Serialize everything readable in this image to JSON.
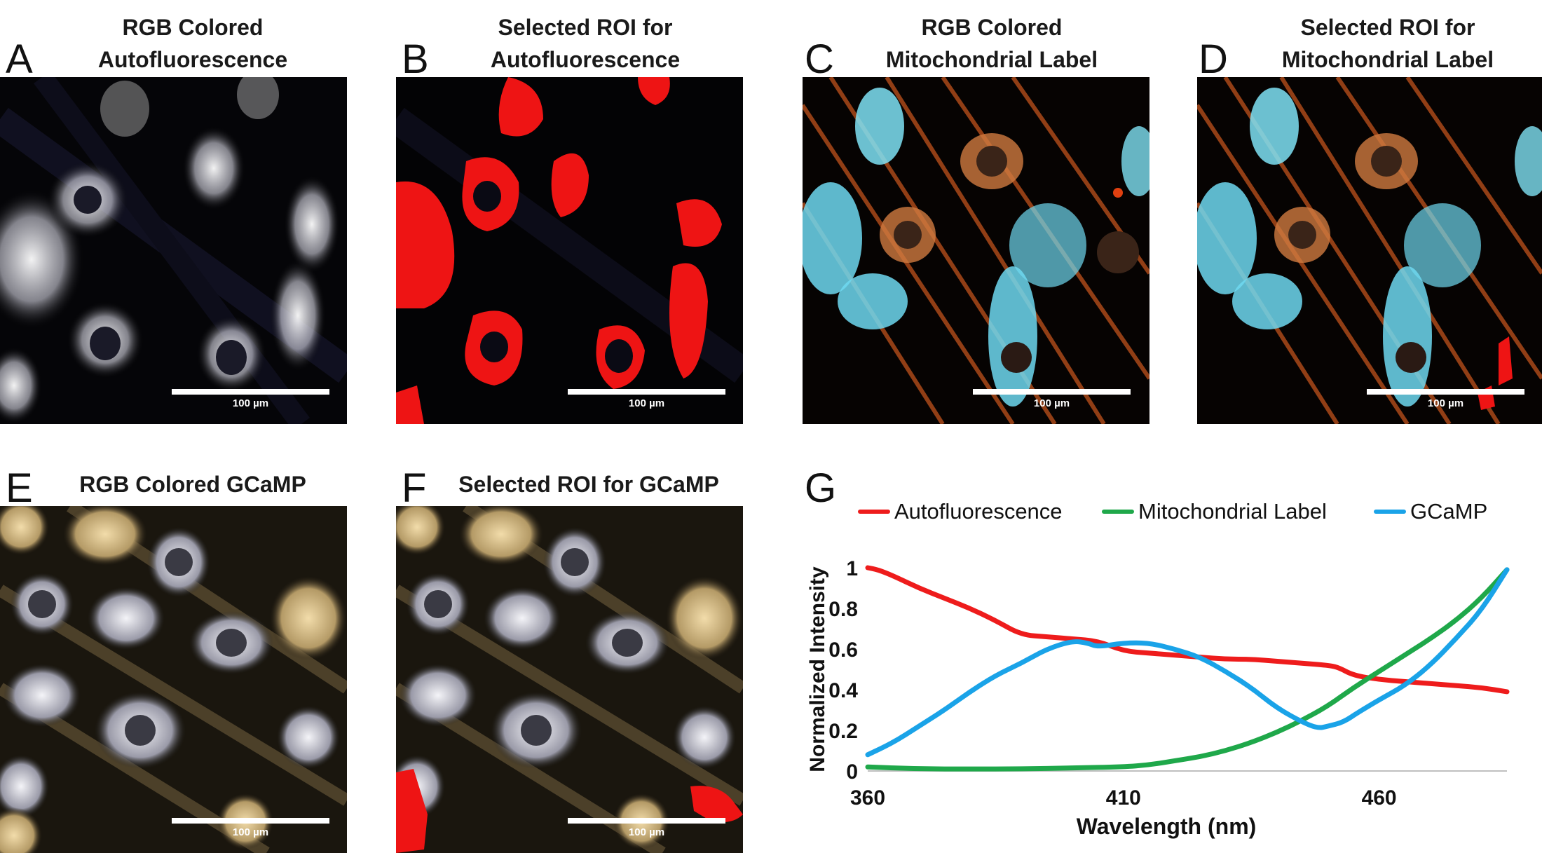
{
  "panels": [
    {
      "letter": "A",
      "title": [
        "RGB Colored",
        "Autofluorescence"
      ],
      "scale": "100 µm"
    },
    {
      "letter": "B",
      "title": [
        "Selected ROI for",
        "Autofluorescence"
      ],
      "scale": "100 µm"
    },
    {
      "letter": "C",
      "title": [
        "RGB Colored",
        "Mitochondrial Label"
      ],
      "scale": "100 µm"
    },
    {
      "letter": "D",
      "title": [
        "Selected ROI for",
        "Mitochondrial Label"
      ],
      "scale": "100 µm"
    },
    {
      "letter": "E",
      "title": [
        "RGB Colored GCaMP"
      ],
      "scale": "100 µm"
    },
    {
      "letter": "F",
      "title": [
        "Selected ROI for GCaMP"
      ],
      "scale": "100 µm"
    }
  ],
  "chart_letter": "G",
  "chart_data": {
    "type": "line",
    "xlabel": "Wavelength (nm)",
    "ylabel": "Normalized Intensity",
    "xlim": [
      360,
      485
    ],
    "ylim": [
      0,
      1
    ],
    "xticks": [
      360,
      410,
      460
    ],
    "yticks": [
      0,
      0.2,
      0.4,
      0.6,
      0.8,
      1
    ],
    "legend_position": "top",
    "series": [
      {
        "name": "Autofluorescence",
        "color": "#ee1c1c",
        "x": [
          360,
          362,
          365,
          370,
          375,
          380,
          385,
          390,
          395,
          400,
          405,
          410,
          415,
          420,
          425,
          430,
          435,
          440,
          445,
          450,
          452,
          455,
          460,
          465,
          470,
          475,
          480,
          485
        ],
        "y": [
          1.0,
          0.99,
          0.96,
          0.9,
          0.85,
          0.8,
          0.74,
          0.67,
          0.66,
          0.65,
          0.64,
          0.59,
          0.58,
          0.57,
          0.56,
          0.55,
          0.55,
          0.54,
          0.53,
          0.52,
          0.51,
          0.47,
          0.45,
          0.44,
          0.43,
          0.42,
          0.41,
          0.39
        ]
      },
      {
        "name": "Mitochondrial Label",
        "color": "#1fa84a",
        "x": [
          360,
          370,
          380,
          390,
          400,
          410,
          415,
          420,
          425,
          430,
          435,
          440,
          445,
          450,
          455,
          460,
          465,
          470,
          475,
          480,
          485
        ],
        "y": [
          0.02,
          0.01,
          0.01,
          0.01,
          0.015,
          0.02,
          0.03,
          0.05,
          0.07,
          0.1,
          0.14,
          0.19,
          0.25,
          0.32,
          0.41,
          0.49,
          0.57,
          0.65,
          0.74,
          0.85,
          0.99
        ]
      },
      {
        "name": "GCaMP",
        "color": "#1aa3e8",
        "x": [
          360,
          365,
          370,
          375,
          380,
          385,
          390,
          395,
          400,
          403,
          405,
          410,
          415,
          420,
          425,
          430,
          435,
          440,
          445,
          448,
          450,
          453,
          456,
          460,
          465,
          470,
          475,
          480,
          485
        ],
        "y": [
          0.08,
          0.14,
          0.22,
          0.3,
          0.39,
          0.47,
          0.53,
          0.6,
          0.64,
          0.63,
          0.61,
          0.63,
          0.63,
          0.6,
          0.56,
          0.49,
          0.41,
          0.31,
          0.24,
          0.21,
          0.22,
          0.24,
          0.29,
          0.35,
          0.42,
          0.52,
          0.65,
          0.79,
          0.99
        ]
      }
    ]
  }
}
